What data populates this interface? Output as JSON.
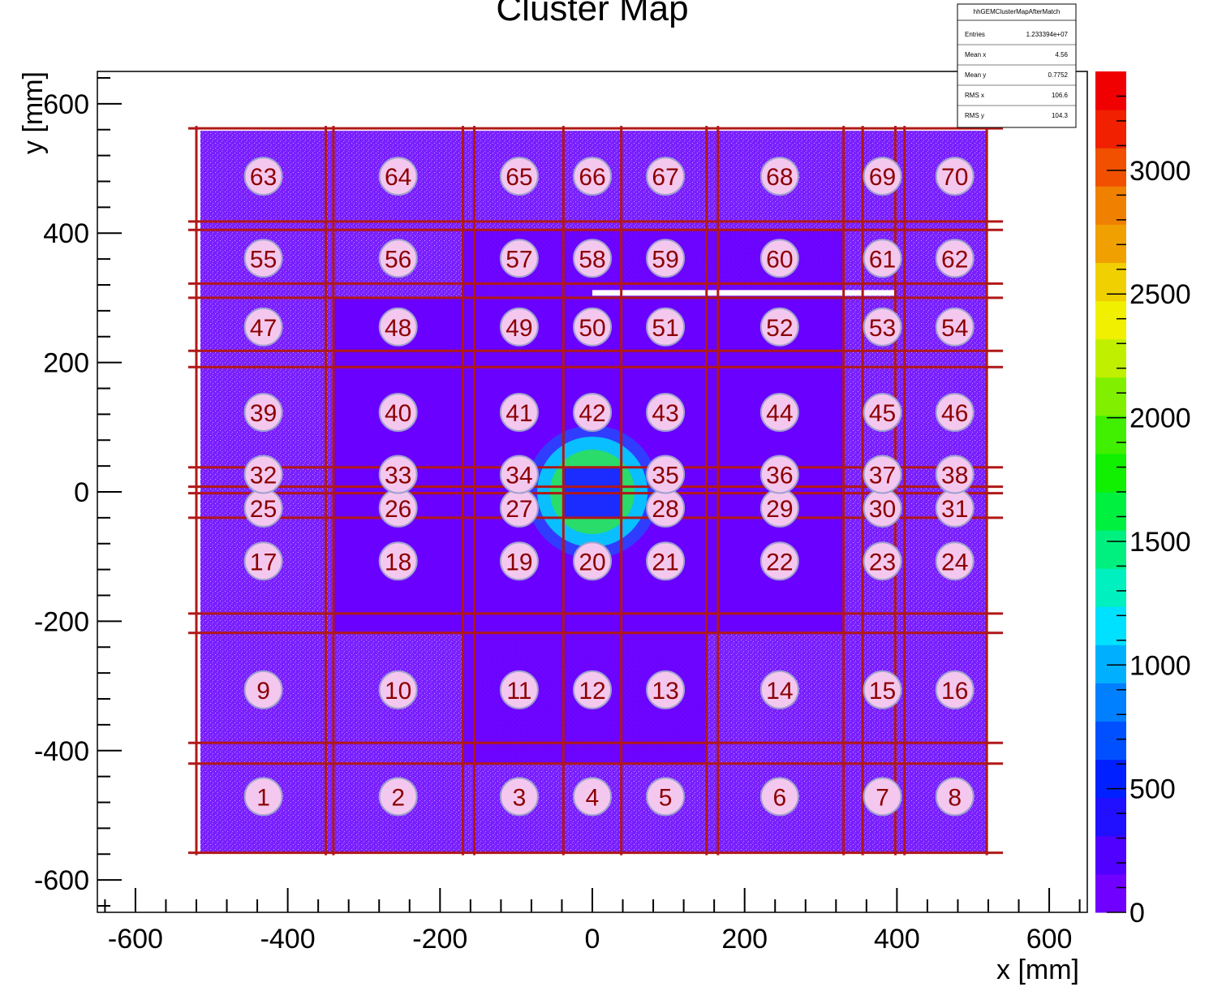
{
  "chart_data": {
    "type": "heatmap",
    "title": "Cluster Map",
    "xlabel": "x [mm]",
    "ylabel": "y [mm]",
    "xlim": [
      -650,
      650
    ],
    "ylim": [
      -650,
      650
    ],
    "x_ticks": [
      -600,
      -400,
      -200,
      0,
      200,
      400,
      600
    ],
    "y_ticks": [
      -600,
      -400,
      -200,
      0,
      200,
      400,
      600
    ],
    "colorbar": {
      "range": [
        0,
        3400
      ],
      "ticks": [
        0,
        500,
        1000,
        1500,
        2000,
        2500,
        3000
      ]
    },
    "stats_box": {
      "name": "hhGEMClusterMapAfterMatch",
      "rows": [
        {
          "label": "Entries",
          "value": "1.233394e+07"
        },
        {
          "label": "Mean x",
          "value": "4.56"
        },
        {
          "label": "Mean y",
          "value": "0.7752"
        },
        {
          "label": "RMS x",
          "value": "106.6"
        },
        {
          "label": "RMS y",
          "value": "104.3"
        }
      ]
    },
    "grid_lines": {
      "vertical_x": [
        -520,
        -350,
        -340,
        -170,
        -155,
        -38,
        38,
        150,
        165,
        330,
        355,
        398,
        410,
        518
      ],
      "horizontal_y": [
        562,
        418,
        405,
        322,
        300,
        218,
        193,
        38,
        8,
        -2,
        -40,
        -188,
        -218,
        -388,
        -420,
        -558
      ]
    },
    "cells": [
      {
        "id": "1",
        "x": -432,
        "y": -471
      },
      {
        "id": "2",
        "x": -255,
        "y": -471
      },
      {
        "id": "3",
        "x": -96,
        "y": -471
      },
      {
        "id": "4",
        "x": 0,
        "y": -471
      },
      {
        "id": "5",
        "x": 96,
        "y": -471
      },
      {
        "id": "6",
        "x": 246,
        "y": -471
      },
      {
        "id": "7",
        "x": 381,
        "y": -471
      },
      {
        "id": "8",
        "x": 476,
        "y": -471
      },
      {
        "id": "9",
        "x": -432,
        "y": -306
      },
      {
        "id": "10",
        "x": -255,
        "y": -306
      },
      {
        "id": "11",
        "x": -96,
        "y": -306
      },
      {
        "id": "12",
        "x": 0,
        "y": -306
      },
      {
        "id": "13",
        "x": 96,
        "y": -306
      },
      {
        "id": "14",
        "x": 246,
        "y": -306
      },
      {
        "id": "15",
        "x": 381,
        "y": -306
      },
      {
        "id": "16",
        "x": 476,
        "y": -306
      },
      {
        "id": "17",
        "x": -432,
        "y": -107
      },
      {
        "id": "18",
        "x": -255,
        "y": -107
      },
      {
        "id": "19",
        "x": -96,
        "y": -107
      },
      {
        "id": "20",
        "x": 0,
        "y": -107
      },
      {
        "id": "21",
        "x": 96,
        "y": -107
      },
      {
        "id": "22",
        "x": 246,
        "y": -107
      },
      {
        "id": "23",
        "x": 381,
        "y": -107
      },
      {
        "id": "24",
        "x": 476,
        "y": -107
      },
      {
        "id": "25",
        "x": -432,
        "y": -25
      },
      {
        "id": "26",
        "x": -255,
        "y": -25
      },
      {
        "id": "27",
        "x": -96,
        "y": -25
      },
      {
        "id": "28",
        "x": 96,
        "y": -25
      },
      {
        "id": "29",
        "x": 246,
        "y": -25
      },
      {
        "id": "30",
        "x": 381,
        "y": -25
      },
      {
        "id": "31",
        "x": 476,
        "y": -25
      },
      {
        "id": "32",
        "x": -432,
        "y": 27
      },
      {
        "id": "33",
        "x": -255,
        "y": 27
      },
      {
        "id": "34",
        "x": -96,
        "y": 27
      },
      {
        "id": "35",
        "x": 96,
        "y": 27
      },
      {
        "id": "36",
        "x": 246,
        "y": 27
      },
      {
        "id": "37",
        "x": 381,
        "y": 27
      },
      {
        "id": "38",
        "x": 476,
        "y": 27
      },
      {
        "id": "39",
        "x": -432,
        "y": 123
      },
      {
        "id": "40",
        "x": -255,
        "y": 123
      },
      {
        "id": "41",
        "x": -96,
        "y": 123
      },
      {
        "id": "42",
        "x": 0,
        "y": 123
      },
      {
        "id": "43",
        "x": 96,
        "y": 123
      },
      {
        "id": "44",
        "x": 246,
        "y": 123
      },
      {
        "id": "45",
        "x": 381,
        "y": 123
      },
      {
        "id": "46",
        "x": 476,
        "y": 123
      },
      {
        "id": "47",
        "x": -432,
        "y": 255
      },
      {
        "id": "48",
        "x": -255,
        "y": 255
      },
      {
        "id": "49",
        "x": -96,
        "y": 255
      },
      {
        "id": "50",
        "x": 0,
        "y": 255
      },
      {
        "id": "51",
        "x": 96,
        "y": 255
      },
      {
        "id": "52",
        "x": 246,
        "y": 255
      },
      {
        "id": "53",
        "x": 381,
        "y": 255
      },
      {
        "id": "54",
        "x": 476,
        "y": 255
      },
      {
        "id": "55",
        "x": -432,
        "y": 361
      },
      {
        "id": "56",
        "x": -255,
        "y": 361
      },
      {
        "id": "57",
        "x": -96,
        "y": 361
      },
      {
        "id": "58",
        "x": 0,
        "y": 361
      },
      {
        "id": "59",
        "x": 96,
        "y": 361
      },
      {
        "id": "60",
        "x": 246,
        "y": 361
      },
      {
        "id": "61",
        "x": 381,
        "y": 361
      },
      {
        "id": "62",
        "x": 476,
        "y": 361
      },
      {
        "id": "63",
        "x": -432,
        "y": 488
      },
      {
        "id": "64",
        "x": -255,
        "y": 488
      },
      {
        "id": "65",
        "x": -96,
        "y": 488
      },
      {
        "id": "66",
        "x": 0,
        "y": 488
      },
      {
        "id": "67",
        "x": 96,
        "y": 488
      },
      {
        "id": "68",
        "x": 246,
        "y": 488
      },
      {
        "id": "69",
        "x": 381,
        "y": 488
      },
      {
        "id": "70",
        "x": 476,
        "y": 488
      }
    ],
    "hotspot": {
      "x": 0,
      "y": 0,
      "value_peak": 1800
    },
    "background_value": 150
  },
  "colors": {
    "background_fill": "#6a00ff",
    "hotspot_ring": "#00e0ff",
    "hotspot_core": "#30e050",
    "grid_line": "#b01818",
    "cell_fill": "#f4c8ee",
    "cell_stroke": "#a0a0d0",
    "cell_text": "#8b0000",
    "colorbar": [
      "#7000ff",
      "#5000ff",
      "#2010ff",
      "#0020ff",
      "#0050ff",
      "#0080ff",
      "#00b0ff",
      "#00e0ff",
      "#00f0c0",
      "#00f080",
      "#00f040",
      "#10f000",
      "#40f000",
      "#80f000",
      "#c0f000",
      "#f0f000",
      "#f0d000",
      "#f0a000",
      "#f08000",
      "#f05000",
      "#f02000",
      "#f00000"
    ]
  }
}
